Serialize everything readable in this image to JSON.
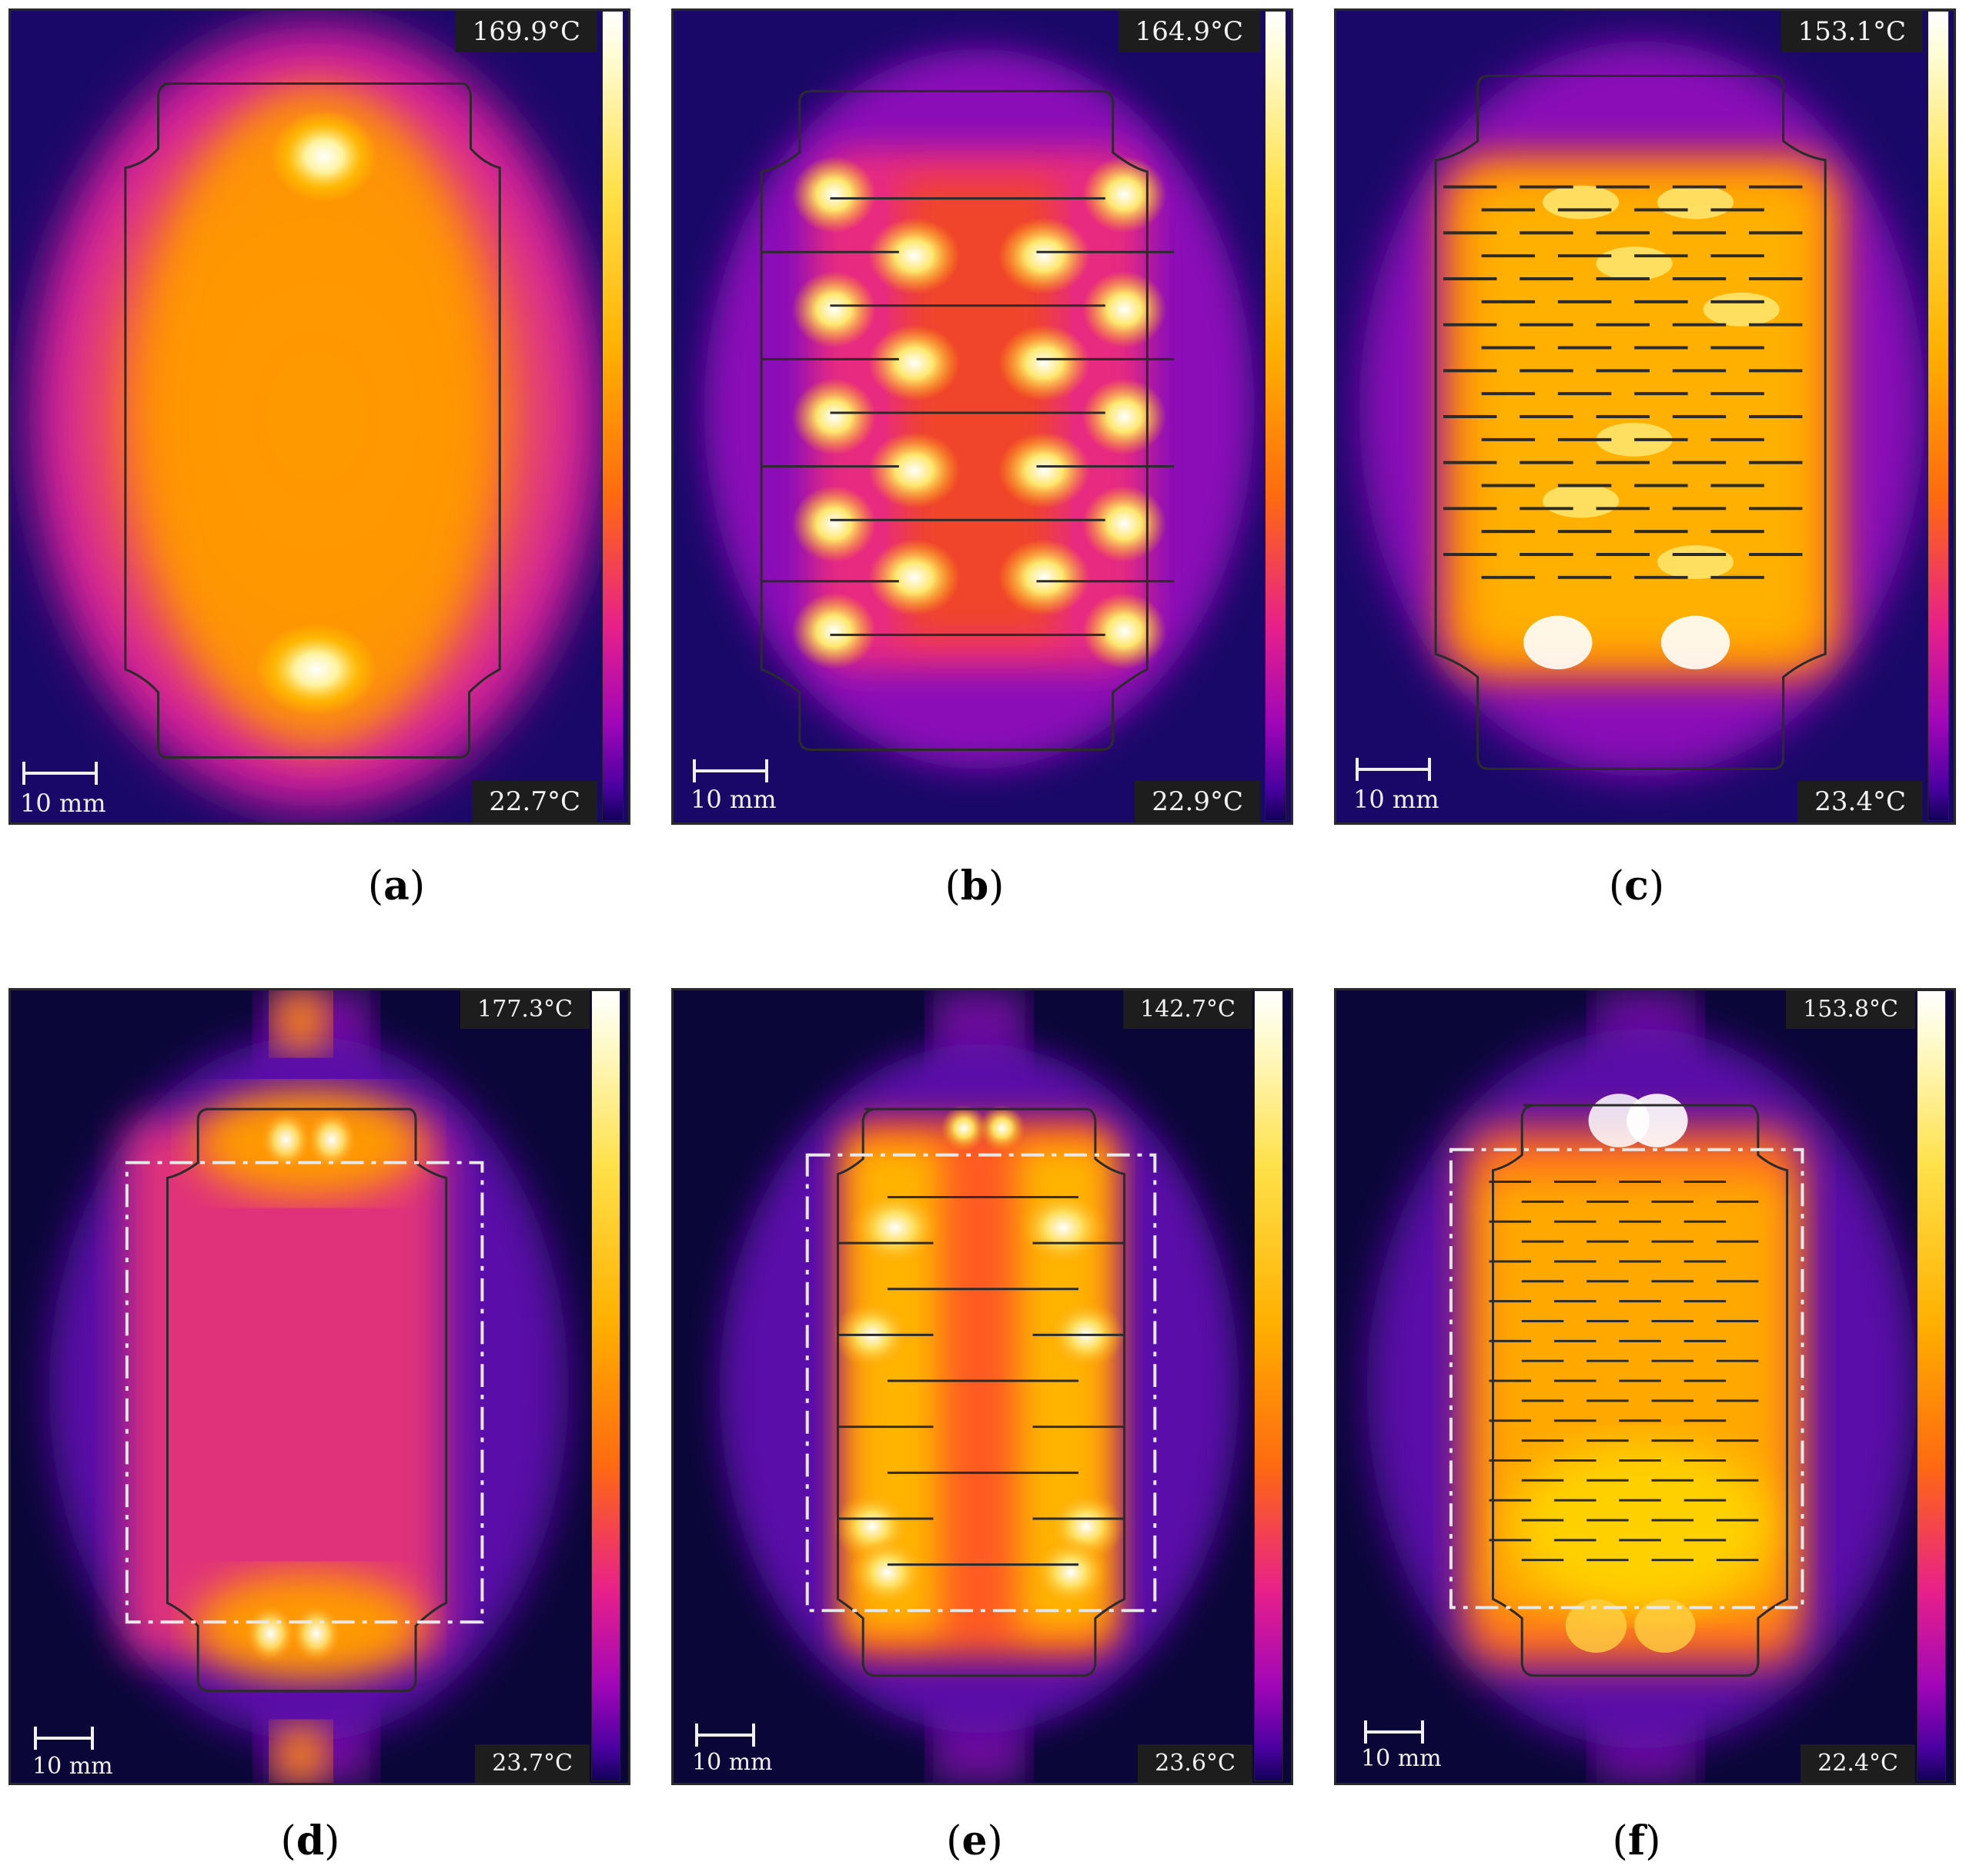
{
  "panels": [
    {
      "id": "a",
      "caption_letter": "a",
      "max_temp": "169.9°C",
      "min_temp": "22.7°C",
      "scale": "10 mm"
    },
    {
      "id": "b",
      "caption_letter": "b",
      "max_temp": "164.9°C",
      "min_temp": "22.9°C",
      "scale": "10 mm"
    },
    {
      "id": "c",
      "caption_letter": "c",
      "max_temp": "153.1°C",
      "min_temp": "23.4°C",
      "scale": "10 mm"
    },
    {
      "id": "d",
      "caption_letter": "d",
      "max_temp": "177.3°C",
      "min_temp": "23.7°C",
      "scale": "10 mm"
    },
    {
      "id": "e",
      "caption_letter": "e",
      "max_temp": "142.7°C",
      "min_temp": "23.6°C",
      "scale": "10 mm"
    },
    {
      "id": "f",
      "caption_letter": "f",
      "max_temp": "153.8°C",
      "min_temp": "22.4°C",
      "scale": "10 mm"
    }
  ],
  "colormap": {
    "hot": "#ffffff",
    "warm": "#ffb000",
    "mid": "#ff6a10",
    "cool": "#a006b8",
    "cold": "#120058"
  }
}
